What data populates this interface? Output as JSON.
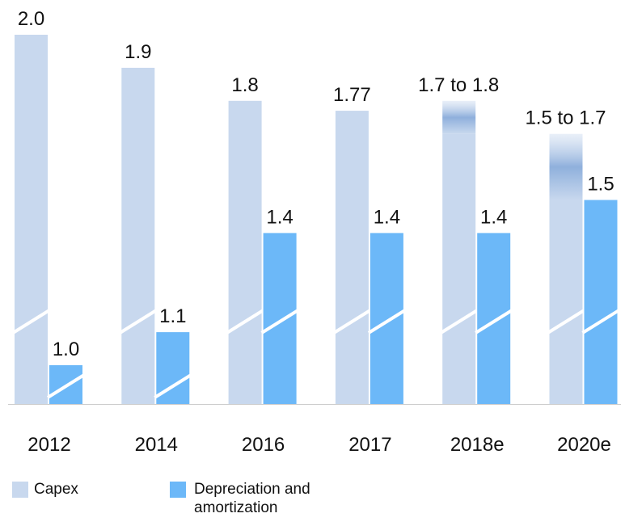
{
  "chart_data": {
    "type": "bar",
    "categories": [
      "2012",
      "2014",
      "2016",
      "2017",
      "2018e",
      "2020e"
    ],
    "series": [
      {
        "name": "Capex",
        "color": "#c8d8ee",
        "values": [
          2.0,
          1.9,
          1.8,
          1.77,
          1.8,
          1.7
        ],
        "lows": [
          2.0,
          1.9,
          1.8,
          1.77,
          1.7,
          1.5
        ],
        "value_labels": [
          "2.0",
          "1.9",
          "1.8",
          "1.77",
          "1.7 to 1.8",
          "1.5 to 1.7"
        ]
      },
      {
        "name": "Depreciation and amortization",
        "color": "#6cb8f8",
        "values": [
          1.0,
          1.1,
          1.4,
          1.4,
          1.4,
          1.5
        ],
        "value_labels": [
          "1.0",
          "1.1",
          "1.4",
          "1.4",
          "1.4",
          "1.5"
        ]
      }
    ]
  }
}
